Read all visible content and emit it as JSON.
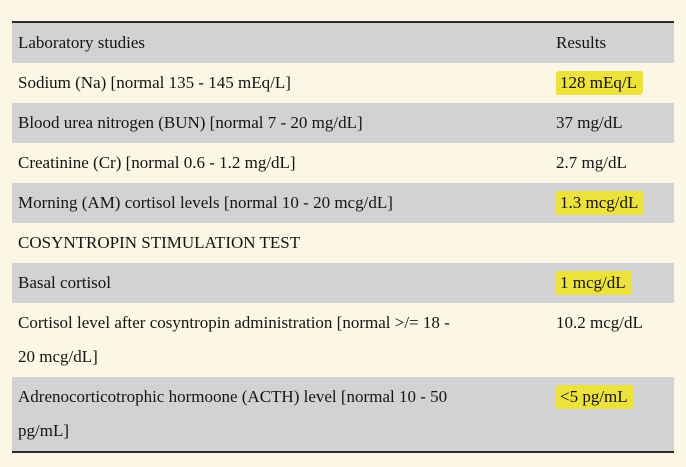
{
  "page": {
    "background_color": "#FBF7E4",
    "row_gray_color": "#D2D2D2",
    "row_cream_color": "#FBF7E4",
    "highlight_color": "#EDE23B",
    "border_color": "#2B2B2B",
    "text_color": "#141414"
  },
  "table": {
    "columns": [
      "Laboratory studies",
      "Results"
    ],
    "rows": [
      {
        "label": "Sodium (Na) [normal 135 - 145 mEq/L]",
        "result": "128 mEq/L",
        "highlighted": true
      },
      {
        "label": "Blood urea nitrogen (BUN) [normal 7 - 20 mg/dL]",
        "result": "37 mg/dL",
        "highlighted": false
      },
      {
        "label": "Creatinine (Cr) [normal 0.6 - 1.2 mg/dL]",
        "result": "2.7 mg/dL",
        "highlighted": false
      },
      {
        "label": "Morning (AM) cortisol levels [normal 10 - 20 mcg/dL]",
        "result": "1.3 mcg/dL",
        "highlighted": true
      },
      {
        "label": "COSYNTROPIN STIMULATION TEST",
        "result": "",
        "highlighted": false
      },
      {
        "label": "Basal cortisol",
        "result": "1 mcg/dL",
        "highlighted": true
      },
      {
        "label": "Cortisol level after cosyntropin administration [normal >/= 18 -\n20 mcg/dL]",
        "result": "10.2 mcg/dL",
        "highlighted": false
      },
      {
        "label": "Adrenocorticotrophic hormoone (ACTH) level [normal 10 - 50\npg/mL]",
        "result": "<5 pg/mL",
        "highlighted": true
      }
    ]
  }
}
